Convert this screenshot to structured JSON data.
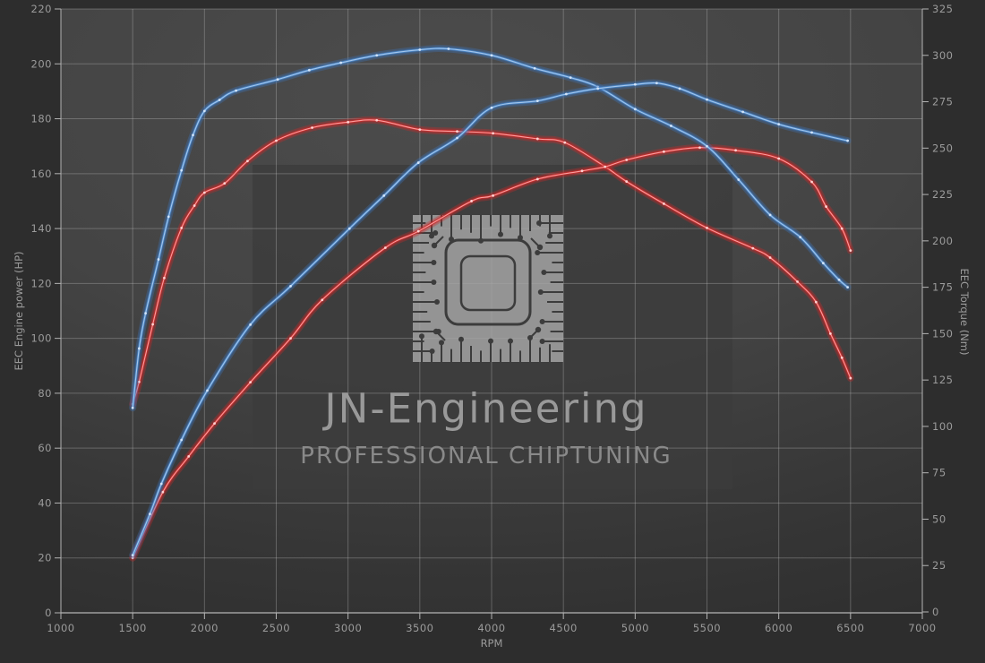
{
  "watermark": {
    "brand": "JN-Engineering",
    "tagline": "PROFESSIONAL CHIPTUNING",
    "icon": "chip-icon"
  },
  "chart_data": {
    "type": "line",
    "title": "",
    "xlabel": "RPM",
    "ylabel_left": "EEC Engine power (HP)",
    "ylabel_right": "EEC Torque (Nm)",
    "xlim": [
      1000,
      7000
    ],
    "ylim_left": [
      0,
      220
    ],
    "ylim_right": [
      0,
      325
    ],
    "x_ticks": [
      1000,
      1500,
      2000,
      2500,
      3000,
      3500,
      4000,
      4500,
      5000,
      5500,
      6000,
      6500,
      7000
    ],
    "y_left_ticks": [
      0,
      20,
      40,
      60,
      80,
      100,
      120,
      140,
      160,
      180,
      200,
      220
    ],
    "y_right_ticks": [
      0,
      25,
      50,
      75,
      100,
      125,
      150,
      175,
      200,
      225,
      250,
      275,
      300,
      325
    ],
    "grid": "horizontal lines follow left-axis ticks, vertical lines every 500 RPM",
    "legend_position": "none",
    "colors": {
      "blue_run": "#4a86c6",
      "red_run": "#c62e2e",
      "grid": "rgba(210,210,210,0.30)",
      "axis_frame": "#b4b4b4",
      "tick_label": "#9b9b9b",
      "background": "#2d2d2d"
    },
    "series": [
      {
        "id": "torque-red",
        "axis": "right",
        "unit": "Nm",
        "color_key": "red_run",
        "points": [
          [
            1500,
            112
          ],
          [
            1545,
            124
          ],
          [
            1640,
            155
          ],
          [
            1720,
            180
          ],
          [
            1840,
            207
          ],
          [
            1930,
            219
          ],
          [
            2000,
            226
          ],
          [
            2140,
            231
          ],
          [
            2300,
            243
          ],
          [
            2500,
            254
          ],
          [
            2750,
            261
          ],
          [
            3000,
            264
          ],
          [
            3200,
            265
          ],
          [
            3500,
            260
          ],
          [
            3760,
            259
          ],
          [
            4010,
            258
          ],
          [
            4320,
            255
          ],
          [
            4510,
            253
          ],
          [
            4790,
            240
          ],
          [
            4940,
            232
          ],
          [
            5200,
            220
          ],
          [
            5500,
            207
          ],
          [
            5820,
            196
          ],
          [
            5940,
            191
          ],
          [
            6130,
            178
          ],
          [
            6260,
            167
          ],
          [
            6360,
            150
          ],
          [
            6440,
            137
          ],
          [
            6500,
            126
          ]
        ]
      },
      {
        "id": "power-red",
        "axis": "left",
        "unit": "HP",
        "color_key": "red_run",
        "points": [
          [
            1500,
            20
          ],
          [
            1710,
            44
          ],
          [
            1890,
            57
          ],
          [
            2070,
            69
          ],
          [
            2320,
            84
          ],
          [
            2600,
            100
          ],
          [
            2820,
            114
          ],
          [
            3260,
            133
          ],
          [
            3490,
            139
          ],
          [
            3860,
            150
          ],
          [
            4010,
            152
          ],
          [
            4320,
            158
          ],
          [
            4630,
            161
          ],
          [
            4790,
            162.5
          ],
          [
            4940,
            165
          ],
          [
            5200,
            168
          ],
          [
            5450,
            169.5
          ],
          [
            5700,
            168.5
          ],
          [
            6000,
            165.5
          ],
          [
            6230,
            157
          ],
          [
            6330,
            148
          ],
          [
            6440,
            140
          ],
          [
            6500,
            132
          ]
        ]
      },
      {
        "id": "torque-blue",
        "axis": "right",
        "unit": "Nm",
        "color_key": "blue_run",
        "points": [
          [
            1500,
            110
          ],
          [
            1545,
            142
          ],
          [
            1590,
            161
          ],
          [
            1680,
            190
          ],
          [
            1750,
            213
          ],
          [
            1840,
            238
          ],
          [
            1920,
            257
          ],
          [
            2000,
            270
          ],
          [
            2105,
            276
          ],
          [
            2220,
            281
          ],
          [
            2510,
            287
          ],
          [
            2730,
            292
          ],
          [
            2950,
            296
          ],
          [
            3200,
            300
          ],
          [
            3500,
            303
          ],
          [
            3700,
            303.5
          ],
          [
            4000,
            300
          ],
          [
            4300,
            293
          ],
          [
            4550,
            288
          ],
          [
            4740,
            283
          ],
          [
            5000,
            271
          ],
          [
            5250,
            262
          ],
          [
            5500,
            251
          ],
          [
            5720,
            233
          ],
          [
            5940,
            214
          ],
          [
            6150,
            202
          ],
          [
            6310,
            188
          ],
          [
            6420,
            179
          ],
          [
            6480,
            175
          ]
        ]
      },
      {
        "id": "power-blue",
        "axis": "left",
        "unit": "HP",
        "color_key": "blue_run",
        "points": [
          [
            1500,
            21
          ],
          [
            1620,
            36
          ],
          [
            1700,
            47
          ],
          [
            1840,
            63
          ],
          [
            2020,
            81
          ],
          [
            2320,
            105
          ],
          [
            2600,
            119
          ],
          [
            3010,
            140
          ],
          [
            3250,
            152
          ],
          [
            3490,
            164
          ],
          [
            3760,
            173
          ],
          [
            4000,
            184
          ],
          [
            4320,
            186.5
          ],
          [
            4520,
            189
          ],
          [
            4740,
            191
          ],
          [
            5000,
            192.5
          ],
          [
            5150,
            193
          ],
          [
            5310,
            191
          ],
          [
            5500,
            187
          ],
          [
            5750,
            182.5
          ],
          [
            6000,
            178
          ],
          [
            6230,
            175
          ],
          [
            6480,
            172
          ]
        ]
      }
    ]
  }
}
